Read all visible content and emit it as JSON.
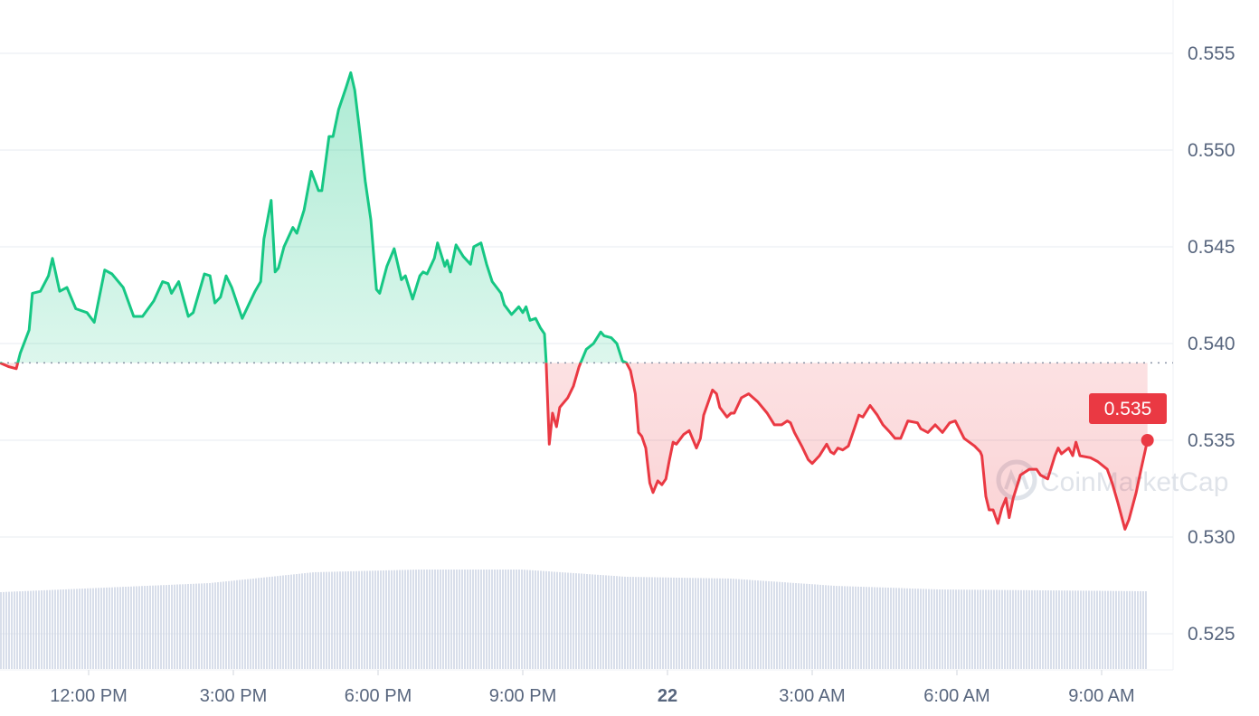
{
  "chart_data": {
    "type": "line",
    "title": "",
    "xlabel": "",
    "ylabel": "",
    "ylim": [
      0.5232,
      0.5568
    ],
    "y_ticks": [
      "0.555",
      "0.550",
      "0.545",
      "0.540",
      "0.535",
      "0.530",
      "0.525"
    ],
    "x_ticks": [
      "12:00 PM",
      "3:00 PM",
      "6:00 PM",
      "9:00 PM",
      "22",
      "3:00 AM",
      "6:00 AM",
      "9:00 AM"
    ],
    "grid": true,
    "reference_price": 0.539,
    "current_price_label": "0.535",
    "watermark": "CoinMarketCap",
    "colors": {
      "up": "#16c784",
      "down": "#ea3943",
      "grid": "#eff2f5",
      "volume": "#cfd6e4",
      "label": "#58667e"
    },
    "times": [
      "10:10",
      "10:21",
      "10:30",
      "10:35",
      "10:46",
      "10:50",
      "11:00",
      "11:10",
      "11:15",
      "11:24",
      "11:33",
      "11:44",
      "11:58",
      "12:07",
      "12:20",
      "12:29",
      "12:43",
      "12:56",
      "13:07",
      "13:21",
      "13:32",
      "13:39",
      "13:43",
      "13:52",
      "14:04",
      "14:10",
      "14:24",
      "14:31",
      "14:37",
      "14:44",
      "14:51",
      "14:58",
      "15:11",
      "15:27",
      "15:34",
      "15:38",
      "15:47",
      "15:52",
      "15:56",
      "16:03",
      "16:14",
      "16:19",
      "16:28",
      "16:37",
      "16:46",
      "16:50",
      "16:59",
      "17:04",
      "17:11",
      "17:20",
      "17:26",
      "17:31",
      "17:38",
      "17:44",
      "17:51",
      "17:58",
      "18:02",
      "18:11",
      "18:20",
      "18:29",
      "18:34",
      "18:43",
      "18:52",
      "18:56",
      "19:01",
      "19:10",
      "19:14",
      "19:23",
      "19:26",
      "19:30",
      "19:37",
      "19:46",
      "19:55",
      "19:59",
      "20:08",
      "20:15",
      "20:22",
      "20:33",
      "20:37",
      "20:46",
      "20:55",
      "21:00",
      "21:04",
      "21:09",
      "21:16",
      "21:22",
      "21:27",
      "21:29",
      "21:33",
      "21:37",
      "21:42",
      "21:46",
      "21:56",
      "22:03",
      "22:10",
      "22:19",
      "22:28",
      "22:37",
      "22:41",
      "22:50",
      "22:57",
      "23:04",
      "23:09",
      "23:14",
      "23:20",
      "23:24",
      "23:28",
      "23:33",
      "23:38",
      "23:42",
      "23:48",
      "23:53",
      "23:58",
      "00:02",
      "00:07",
      "00:11",
      "00:20",
      "00:27",
      "00:36",
      "00:41",
      "00:45",
      "00:56",
      "01:01",
      "01:05",
      "01:14",
      "01:19",
      "01:23",
      "01:32",
      "01:41",
      "01:52",
      "02:04",
      "02:13",
      "02:22",
      "02:29",
      "02:33",
      "02:38",
      "02:47",
      "02:55",
      "03:00",
      "03:09",
      "03:18",
      "03:23",
      "03:27",
      "03:32",
      "03:38",
      "03:45",
      "03:54",
      "03:58",
      "04:03",
      "04:12",
      "04:21",
      "04:28",
      "04:37",
      "04:43",
      "04:50",
      "04:59",
      "05:11",
      "05:15",
      "05:24",
      "05:33",
      "05:42",
      "05:51",
      "05:58",
      "06:09",
      "06:22",
      "06:29",
      "06:31",
      "06:36",
      "06:40",
      "06:45",
      "06:51",
      "06:56",
      "07:01",
      "07:05",
      "07:10",
      "07:19",
      "07:30",
      "07:39",
      "07:44",
      "07:53",
      "08:02",
      "08:06",
      "08:10",
      "08:19",
      "08:24",
      "08:28",
      "08:33",
      "08:46",
      "08:55",
      "09:07",
      "09:13",
      "09:20",
      "09:29",
      "09:34",
      "09:43",
      "09:49",
      "09:57"
    ],
    "prices": [
      0.539,
      0.5388,
      0.5387,
      0.5395,
      0.5407,
      0.5426,
      0.5427,
      0.5435,
      0.5444,
      0.5427,
      0.5429,
      0.5418,
      0.5416,
      0.5411,
      0.5438,
      0.5436,
      0.5429,
      0.5414,
      0.5414,
      0.5422,
      0.5432,
      0.5431,
      0.5426,
      0.5432,
      0.5414,
      0.5416,
      0.5436,
      0.5435,
      0.5421,
      0.5424,
      0.5435,
      0.5429,
      0.5413,
      0.5427,
      0.5432,
      0.5454,
      0.5474,
      0.5437,
      0.5439,
      0.545,
      0.546,
      0.5457,
      0.5469,
      0.5489,
      0.5479,
      0.5479,
      0.5507,
      0.5507,
      0.5521,
      0.5532,
      0.554,
      0.5531,
      0.5507,
      0.5484,
      0.5464,
      0.5428,
      0.5426,
      0.544,
      0.5449,
      0.5433,
      0.5435,
      0.5423,
      0.5435,
      0.5437,
      0.5436,
      0.5444,
      0.5452,
      0.544,
      0.5443,
      0.5437,
      0.5451,
      0.5445,
      0.5441,
      0.545,
      0.5452,
      0.5441,
      0.5432,
      0.5426,
      0.542,
      0.5415,
      0.5419,
      0.5416,
      0.5419,
      0.5412,
      0.5413,
      0.5408,
      0.5405,
      0.5391,
      0.5348,
      0.5364,
      0.5357,
      0.5367,
      0.5372,
      0.5378,
      0.5388,
      0.5397,
      0.54,
      0.5406,
      0.5404,
      0.5403,
      0.54,
      0.5391,
      0.539,
      0.5386,
      0.5374,
      0.5354,
      0.5352,
      0.5346,
      0.5328,
      0.5323,
      0.5329,
      0.5327,
      0.533,
      0.5339,
      0.5349,
      0.5348,
      0.5353,
      0.5355,
      0.5346,
      0.5351,
      0.5363,
      0.5376,
      0.5374,
      0.5367,
      0.5362,
      0.5364,
      0.5364,
      0.5372,
      0.5374,
      0.537,
      0.5364,
      0.5358,
      0.5358,
      0.536,
      0.5359,
      0.5354,
      0.5347,
      0.534,
      0.5338,
      0.5342,
      0.5348,
      0.5344,
      0.5343,
      0.5346,
      0.5345,
      0.5347,
      0.5358,
      0.5363,
      0.5362,
      0.5368,
      0.5363,
      0.5358,
      0.5354,
      0.5351,
      0.5351,
      0.536,
      0.5359,
      0.5356,
      0.5354,
      0.5358,
      0.5354,
      0.5359,
      0.536,
      0.5351,
      0.5347,
      0.5344,
      0.5342,
      0.5321,
      0.5314,
      0.5314,
      0.5307,
      0.5315,
      0.532,
      0.531,
      0.532,
      0.5332,
      0.5335,
      0.5335,
      0.5332,
      0.533,
      0.5342,
      0.5346,
      0.5343,
      0.5346,
      0.5342,
      0.5349,
      0.5342,
      0.5341,
      0.5339,
      0.5335,
      0.5328,
      0.5318,
      0.5304,
      0.5309,
      0.5323,
      0.5335,
      0.535
    ],
    "volume_relative": [
      85,
      90,
      95,
      107,
      110,
      110,
      102,
      100,
      92,
      88,
      87,
      86
    ]
  }
}
